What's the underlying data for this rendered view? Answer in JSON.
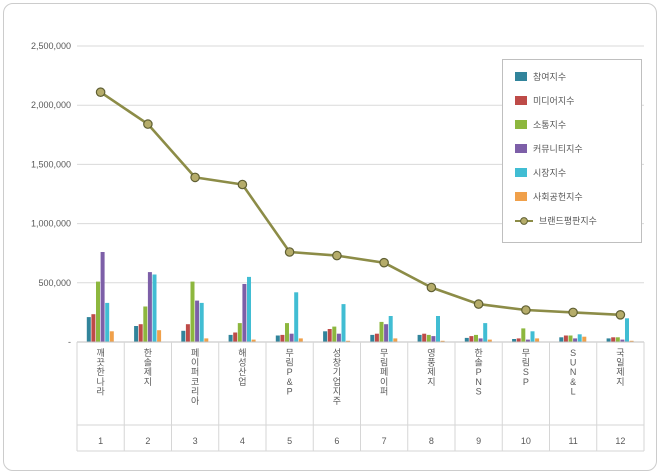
{
  "chart_data": {
    "type": "bar",
    "subtype": "grouped-bars-with-line-overlay",
    "title": "",
    "categories": [
      "깨끗한나라",
      "한솔제지",
      "페이퍼코리아",
      "해성산업",
      "무림P&P",
      "성창기업지주",
      "무림페이퍼",
      "영풍제지",
      "한솔PNS",
      "무림SP",
      "SUN&L",
      "국일제지"
    ],
    "category_numbers": [
      "1",
      "2",
      "3",
      "4",
      "5",
      "6",
      "7",
      "8",
      "9",
      "10",
      "11",
      "12"
    ],
    "y_axis": {
      "min": 0,
      "max": 2500000,
      "step": 500000,
      "tick_labels": [
        "-",
        "500,000",
        "1,000,000",
        "1,500,000",
        "2,000,000",
        "2,500,000"
      ]
    },
    "grid": true,
    "legend_position": "top-right",
    "series": [
      {
        "name": "참여지수",
        "type": "bar",
        "color": "#31849B",
        "values": [
          210000,
          135000,
          95000,
          60000,
          55000,
          90000,
          60000,
          60000,
          35000,
          25000,
          40000,
          30000
        ]
      },
      {
        "name": "미디어지수",
        "type": "bar",
        "color": "#BE4B48",
        "values": [
          235000,
          150000,
          150000,
          80000,
          60000,
          110000,
          70000,
          70000,
          50000,
          30000,
          55000,
          40000
        ]
      },
      {
        "name": "소통지수",
        "type": "bar",
        "color": "#8DB73E",
        "values": [
          510000,
          300000,
          510000,
          160000,
          160000,
          130000,
          170000,
          60000,
          60000,
          115000,
          55000,
          40000
        ]
      },
      {
        "name": "커뮤니티지수",
        "type": "bar",
        "color": "#7D5FA8",
        "values": [
          760000,
          590000,
          350000,
          490000,
          70000,
          70000,
          150000,
          50000,
          30000,
          20000,
          30000,
          20000
        ]
      },
      {
        "name": "시장지수",
        "type": "bar",
        "color": "#41BDD3",
        "values": [
          330000,
          570000,
          330000,
          550000,
          420000,
          320000,
          220000,
          220000,
          160000,
          90000,
          65000,
          200000
        ]
      },
      {
        "name": "사회공헌지수",
        "type": "bar",
        "color": "#F0A04A",
        "values": [
          90000,
          100000,
          30000,
          20000,
          30000,
          10000,
          30000,
          10000,
          20000,
          30000,
          45000,
          10000
        ]
      },
      {
        "name": "브랜드평판지수",
        "type": "line",
        "color": "#8C8C47",
        "marker_fill": "#B5AC6A",
        "marker_stroke": "#5F5F33",
        "values": [
          2110000,
          1840000,
          1390000,
          1330000,
          760000,
          730000,
          670000,
          460000,
          320000,
          270000,
          250000,
          230000
        ]
      }
    ],
    "colors": {
      "gridline": "#DADADA",
      "axis_line": "#BFBFBF",
      "label_table_line": "#D6D6D6",
      "text": "#595959",
      "frame_border": "#CCCCCC"
    }
  }
}
